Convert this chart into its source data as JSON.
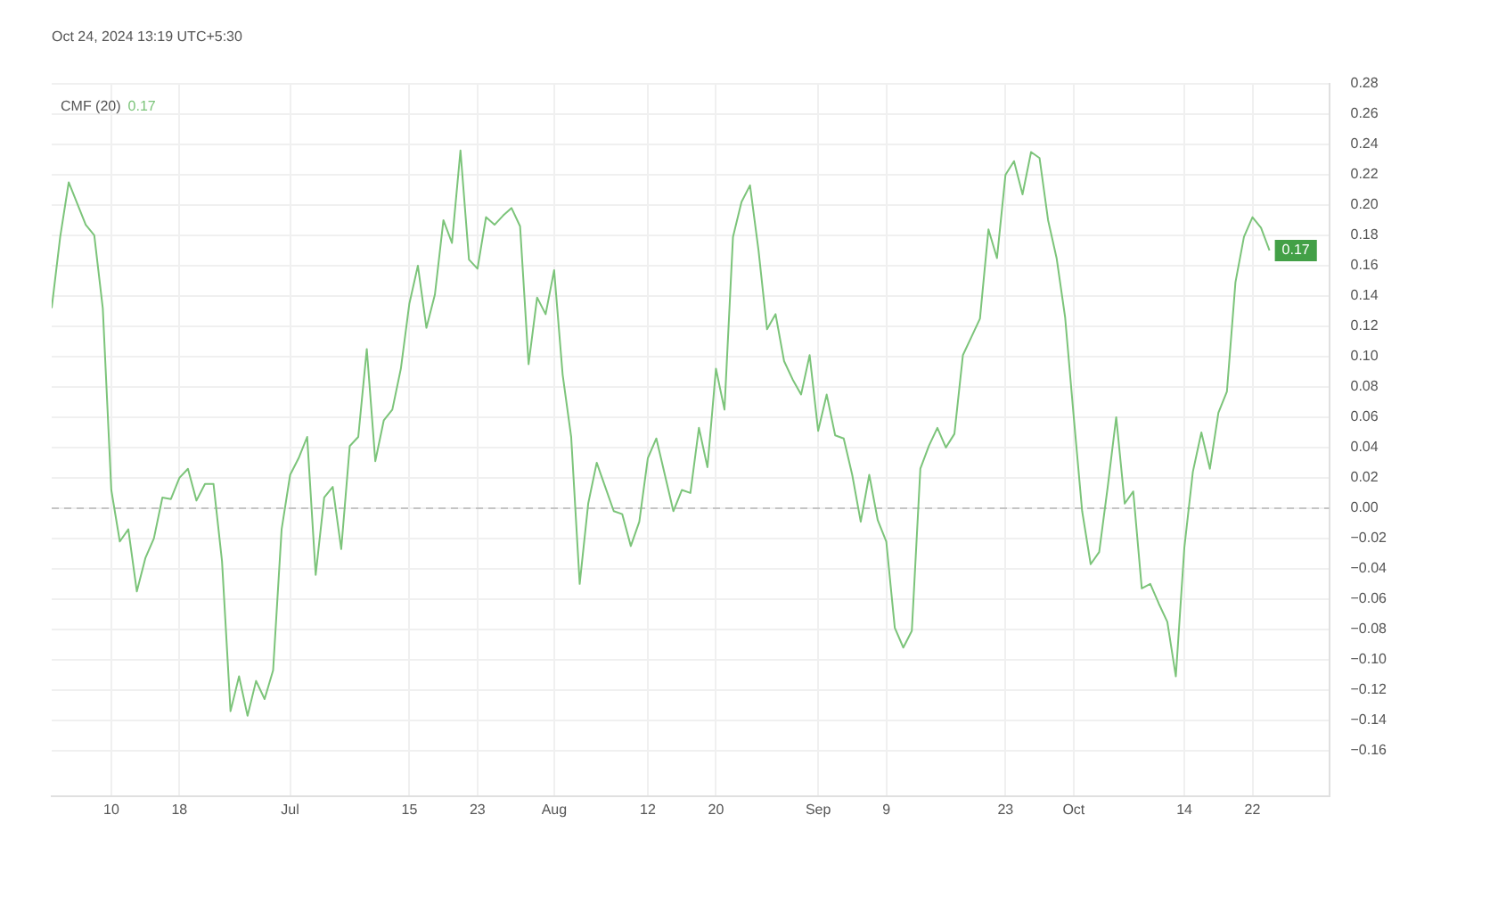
{
  "chart_data": {
    "type": "line",
    "title": "Oct 24, 2024 13:19 UTC+5:30",
    "x": [
      "2024-06-03",
      "2024-06-04",
      "2024-06-05",
      "2024-06-07",
      "2024-06-08",
      "2024-06-09",
      "2024-06-10",
      "2024-06-11",
      "2024-06-12",
      "2024-06-13",
      "2024-06-14",
      "2024-06-15",
      "2024-06-16",
      "2024-06-17",
      "2024-06-18",
      "2024-06-19",
      "2024-06-20",
      "2024-06-21",
      "2024-06-22",
      "2024-06-23",
      "2024-06-24",
      "2024-06-25",
      "2024-06-26",
      "2024-06-27",
      "2024-06-28",
      "2024-06-29",
      "2024-06-30",
      "2024-07-01",
      "2024-07-02",
      "2024-07-03",
      "2024-07-04",
      "2024-07-05",
      "2024-07-06",
      "2024-07-07",
      "2024-07-08",
      "2024-07-09",
      "2024-07-10",
      "2024-07-11",
      "2024-07-12",
      "2024-07-13",
      "2024-07-14",
      "2024-07-15",
      "2024-07-16",
      "2024-07-17",
      "2024-07-18",
      "2024-07-19",
      "2024-07-20",
      "2024-07-21",
      "2024-07-22",
      "2024-07-23",
      "2024-07-24",
      "2024-07-25",
      "2024-07-26",
      "2024-07-27",
      "2024-07-28",
      "2024-07-29",
      "2024-07-30",
      "2024-07-31",
      "2024-08-01",
      "2024-08-02",
      "2024-08-03",
      "2024-08-04",
      "2024-08-05",
      "2024-08-06",
      "2024-08-07",
      "2024-08-08",
      "2024-08-09",
      "2024-08-10",
      "2024-08-11",
      "2024-08-12",
      "2024-08-13",
      "2024-08-14",
      "2024-08-15",
      "2024-08-16",
      "2024-08-17",
      "2024-08-18",
      "2024-08-19",
      "2024-08-20",
      "2024-08-21",
      "2024-08-22",
      "2024-08-23",
      "2024-08-24",
      "2024-08-25",
      "2024-08-26",
      "2024-08-27",
      "2024-08-28",
      "2024-08-29",
      "2024-08-30",
      "2024-08-31",
      "2024-09-01",
      "2024-09-02",
      "2024-09-03",
      "2024-09-04",
      "2024-09-05",
      "2024-09-06",
      "2024-09-07",
      "2024-09-08",
      "2024-09-09",
      "2024-09-10",
      "2024-09-11",
      "2024-09-12",
      "2024-09-13",
      "2024-09-14",
      "2024-09-15",
      "2024-09-16",
      "2024-09-17",
      "2024-09-18",
      "2024-09-19",
      "2024-09-20",
      "2024-09-21",
      "2024-09-22",
      "2024-09-23",
      "2024-09-24",
      "2024-09-25",
      "2024-09-26",
      "2024-09-27",
      "2024-09-28",
      "2024-09-29",
      "2024-09-30",
      "2024-10-01",
      "2024-10-02",
      "2024-10-03",
      "2024-10-04",
      "2024-10-05",
      "2024-10-06",
      "2024-10-07",
      "2024-10-08",
      "2024-10-09",
      "2024-10-10",
      "2024-10-11",
      "2024-10-12",
      "2024-10-13",
      "2024-10-14",
      "2024-10-15",
      "2024-10-16",
      "2024-10-17",
      "2024-10-18",
      "2024-10-19",
      "2024-10-20",
      "2024-10-21",
      "2024-10-22",
      "2024-10-23",
      "2024-10-24"
    ],
    "series": [
      {
        "name": "CMF (20)",
        "color": "#7cc47a",
        "values": [
          0.132,
          0.179,
          0.215,
          0.187,
          0.18,
          0.132,
          0.012,
          -0.022,
          -0.014,
          -0.055,
          -0.033,
          -0.02,
          0.007,
          0.006,
          0.02,
          0.026,
          0.005,
          0.016,
          0.016,
          -0.035,
          -0.134,
          -0.111,
          -0.137,
          -0.114,
          -0.126,
          -0.107,
          -0.014,
          0.022,
          0.033,
          0.047,
          -0.044,
          0.007,
          0.014,
          -0.027,
          0.041,
          0.047,
          0.105,
          0.031,
          0.058,
          0.065,
          0.092,
          0.135,
          0.16,
          0.119,
          0.141,
          0.19,
          0.175,
          0.236,
          0.164,
          0.158,
          0.192,
          0.187,
          0.193,
          0.198,
          0.186,
          0.095,
          0.139,
          0.128,
          0.157,
          0.088,
          0.047,
          -0.05,
          0.003,
          0.03,
          0.014,
          -0.002,
          -0.004,
          -0.025,
          -0.009,
          0.033,
          0.046,
          0.022,
          -0.002,
          0.012,
          0.01,
          0.053,
          0.027,
          0.092,
          0.065,
          0.179,
          0.202,
          0.213,
          0.17,
          0.118,
          0.128,
          0.097,
          0.085,
          0.075,
          0.101,
          0.051,
          0.075,
          0.048,
          0.046,
          0.022,
          -0.009,
          0.022,
          -0.008,
          -0.022,
          -0.079,
          -0.092,
          -0.081,
          0.026,
          0.041,
          0.053,
          0.04,
          0.049,
          0.101,
          0.113,
          0.125,
          0.184,
          0.165,
          0.22,
          0.229,
          0.207,
          0.235,
          0.231,
          0.19,
          0.165,
          0.126,
          0.061,
          -0.002,
          -0.037,
          -0.029,
          0.014,
          0.06,
          0.003,
          0.011,
          -0.053,
          -0.05,
          -0.063,
          -0.075,
          -0.111,
          -0.026,
          0.024,
          0.05,
          0.026,
          0.063,
          0.077,
          0.149,
          0.179,
          0.192,
          0.185,
          0.17
        ],
        "value_labels": [
          null,
          null,
          null,
          null,
          null,
          null,
          null,
          null,
          null,
          null,
          null,
          null,
          null,
          null,
          null,
          null,
          null,
          null,
          null,
          null,
          null,
          null,
          null,
          null,
          null,
          null,
          null,
          null,
          null,
          null,
          null,
          null,
          null,
          null,
          null,
          null,
          null,
          null,
          null,
          null,
          null,
          null,
          null,
          null,
          null,
          null,
          null,
          null,
          null,
          null,
          null,
          null,
          null,
          null,
          null,
          null,
          null,
          null,
          null,
          null,
          null,
          null,
          null,
          null,
          null,
          null,
          null,
          null,
          null,
          null,
          null,
          null,
          null,
          null,
          null,
          null,
          null,
          null,
          null,
          null,
          null,
          null,
          null,
          null,
          null,
          null,
          null,
          null,
          null,
          null,
          null,
          null,
          null,
          null,
          null,
          null,
          null,
          null,
          null,
          null,
          null,
          null,
          null,
          null,
          null,
          null,
          null,
          null,
          null,
          null,
          null,
          null,
          null,
          null,
          null,
          null,
          null,
          null,
          null,
          null,
          null,
          null,
          null,
          null,
          null,
          null,
          null,
          null,
          null,
          null,
          null,
          null,
          null,
          null,
          null,
          null,
          null,
          null,
          null,
          null,
          null,
          null,
          "0.17"
        ]
      }
    ],
    "xlim": [
      "2024-06-03",
      "2024-10-31"
    ],
    "xticks": [
      {
        "value": "2024-06-10",
        "label": "10"
      },
      {
        "value": "2024-06-18",
        "label": "18"
      },
      {
        "value": "2024-07-01",
        "label": "Jul"
      },
      {
        "value": "2024-07-15",
        "label": "15"
      },
      {
        "value": "2024-07-23",
        "label": "23"
      },
      {
        "value": "2024-08-01",
        "label": "Aug"
      },
      {
        "value": "2024-08-12",
        "label": "12"
      },
      {
        "value": "2024-08-20",
        "label": "20"
      },
      {
        "value": "2024-09-01",
        "label": "Sep"
      },
      {
        "value": "2024-09-09",
        "label": "9"
      },
      {
        "value": "2024-09-23",
        "label": "23"
      },
      {
        "value": "2024-10-01",
        "label": "Oct"
      },
      {
        "value": "2024-10-14",
        "label": "14"
      },
      {
        "value": "2024-10-22",
        "label": "22"
      }
    ],
    "ylim": [
      -0.19,
      0.28
    ],
    "yticks": [
      {
        "value": -0.16,
        "label": "−0.16"
      },
      {
        "value": -0.14,
        "label": "−0.14"
      },
      {
        "value": -0.12,
        "label": "−0.12"
      },
      {
        "value": -0.1,
        "label": "−0.10"
      },
      {
        "value": -0.08,
        "label": "−0.08"
      },
      {
        "value": -0.06,
        "label": "−0.06"
      },
      {
        "value": -0.04,
        "label": "−0.04"
      },
      {
        "value": -0.02,
        "label": "−0.02"
      },
      {
        "value": 0,
        "label": "0.00"
      },
      {
        "value": 0.02,
        "label": "0.02"
      },
      {
        "value": 0.04,
        "label": "0.04"
      },
      {
        "value": 0.06,
        "label": "0.06"
      },
      {
        "value": 0.08,
        "label": "0.08"
      },
      {
        "value": 0.1,
        "label": "0.10"
      },
      {
        "value": 0.12,
        "label": "0.12"
      },
      {
        "value": 0.14,
        "label": "0.14"
      },
      {
        "value": 0.16,
        "label": "0.16"
      },
      {
        "value": 0.18,
        "label": "0.18"
      },
      {
        "value": 0.2,
        "label": "0.20"
      },
      {
        "value": 0.22,
        "label": "0.22"
      },
      {
        "value": 0.24,
        "label": "0.24"
      },
      {
        "value": 0.26,
        "label": "0.26"
      },
      {
        "value": 0.28,
        "label": "0.28"
      }
    ],
    "ref_lines": [
      {
        "axis": "y",
        "value": 0,
        "color": "#c4c4c4",
        "line_style": "dashed"
      }
    ],
    "grid": true,
    "legend": "top left",
    "marker": "none",
    "line_style": "solid"
  }
}
